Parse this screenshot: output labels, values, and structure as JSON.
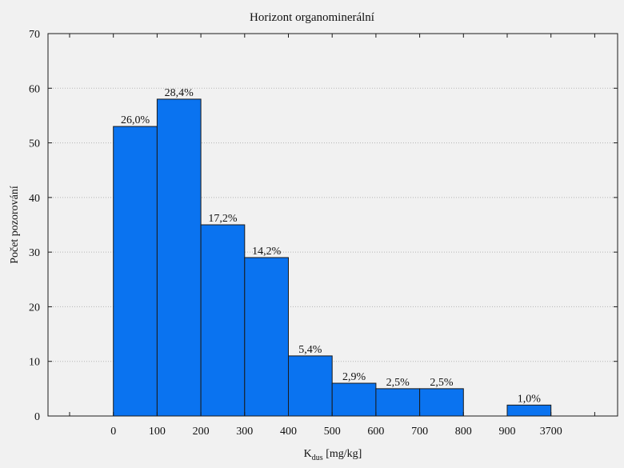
{
  "chart_data": {
    "type": "bar",
    "title": "Horizont organominerální",
    "xlabel": {
      "main": "K",
      "subscript": "dus",
      "suffix": " [mg/kg]"
    },
    "ylabel": "Počet pozorování",
    "ylim": [
      0,
      70
    ],
    "yticks": [
      0,
      10,
      20,
      30,
      40,
      50,
      60,
      70
    ],
    "x_edges": [
      "0",
      "100",
      "200",
      "300",
      "400",
      "500",
      "600",
      "700",
      "800",
      "900",
      "3700"
    ],
    "bars": [
      {
        "from": "0",
        "to": "100",
        "value": 53,
        "label": "26,0%"
      },
      {
        "from": "100",
        "to": "200",
        "value": 58,
        "label": "28,4%"
      },
      {
        "from": "200",
        "to": "300",
        "value": 35,
        "label": "17,2%"
      },
      {
        "from": "300",
        "to": "400",
        "value": 29,
        "label": "14,2%"
      },
      {
        "from": "400",
        "to": "500",
        "value": 11,
        "label": "5,4%"
      },
      {
        "from": "500",
        "to": "600",
        "value": 6,
        "label": "2,9%"
      },
      {
        "from": "600",
        "to": "700",
        "value": 5,
        "label": "2,5%"
      },
      {
        "from": "700",
        "to": "800",
        "value": 5,
        "label": "2,5%"
      },
      {
        "from": "900",
        "to": "3700",
        "value": 2,
        "label": "1,0%"
      }
    ],
    "grid": "horizontal-dotted",
    "legend": "none",
    "colors": {
      "bar_fill": "#0a73f0",
      "bar_stroke": "#1a1a1a",
      "grid": "#b5b5b5"
    }
  }
}
